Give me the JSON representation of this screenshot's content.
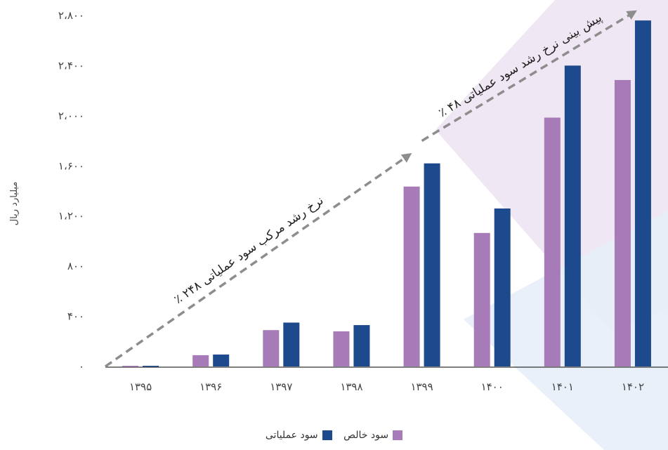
{
  "chart_data": {
    "type": "bar",
    "title": "",
    "xlabel": "",
    "ylabel": "میلیارد ریال",
    "categories": [
      "۱۳۹۵",
      "۱۳۹۶",
      "۱۳۹۷",
      "۱۳۹۸",
      "۱۳۹۹",
      "۱۴۰۰",
      "۱۴۰۱",
      "۱۴۰۲"
    ],
    "series": [
      {
        "name": "سود خالص",
        "color": "#a77bb7",
        "values": [
          5,
          90,
          290,
          280,
          1435,
          1065,
          1985,
          2285
        ]
      },
      {
        "name": "سود عملیاتی",
        "color": "#1c4a8c",
        "values": [
          5,
          95,
          350,
          330,
          1620,
          1260,
          2400,
          2760
        ]
      }
    ],
    "ylim": [
      0,
      2800
    ],
    "yticks": [
      0,
      400,
      800,
      1200,
      1600,
      2000,
      2400,
      2800
    ],
    "ytick_labels": [
      "۰",
      "۴۰۰",
      "۸۰۰",
      "۱،۲۰۰",
      "۱،۶۰۰",
      "۲،۰۰۰",
      "۲،۴۰۰",
      "۲،۸۰۰"
    ],
    "grid": false,
    "legend_position": "bottom-center",
    "annotations": [
      {
        "text": "نرخ رشد مرکب سود عملیاتی ۲۴۸ ٪",
        "from": [
          "۱۳۹۵",
          0
        ],
        "to": [
          "۱۳۹۹",
          1680
        ]
      },
      {
        "text": "پیش بینی نرخ رشد سود عملیاتی ۴۸ ٪",
        "from": [
          "۱۳۹۹",
          1800
        ],
        "to": [
          "۱۴۰۲",
          2820
        ]
      }
    ],
    "forecast_shading_colors": [
      "#ece3f1",
      "#e7eef8"
    ]
  }
}
